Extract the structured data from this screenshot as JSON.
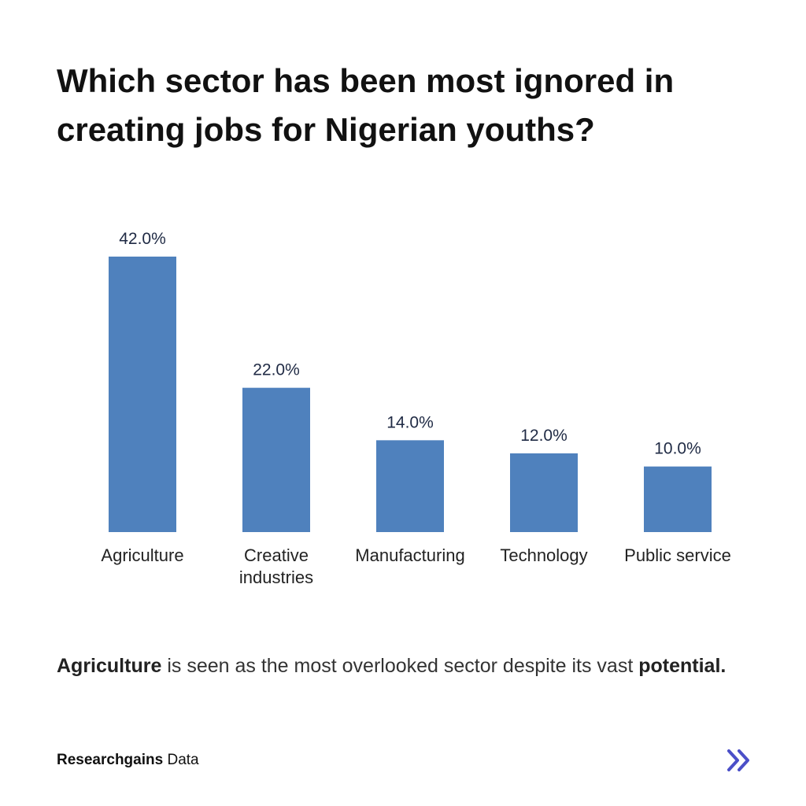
{
  "chart_data": {
    "type": "bar",
    "title": "Which sector has been most ignored in creating jobs for Nigerian youths?",
    "categories": [
      "Agriculture",
      "Creative industries",
      "Manufacturing",
      "Technology",
      "Public service"
    ],
    "values": [
      42,
      22,
      14,
      12,
      10
    ],
    "value_labels": [
      "42.0%",
      "22.0%",
      "14.0%",
      "12.0%",
      "10.0%"
    ],
    "color": "#4f81bd"
  },
  "caption": [
    "Agriculture",
    "is seen as the most overlooked sector despite its vast",
    "potential."
  ],
  "footer": [
    "Researchgains",
    "Data"
  ]
}
